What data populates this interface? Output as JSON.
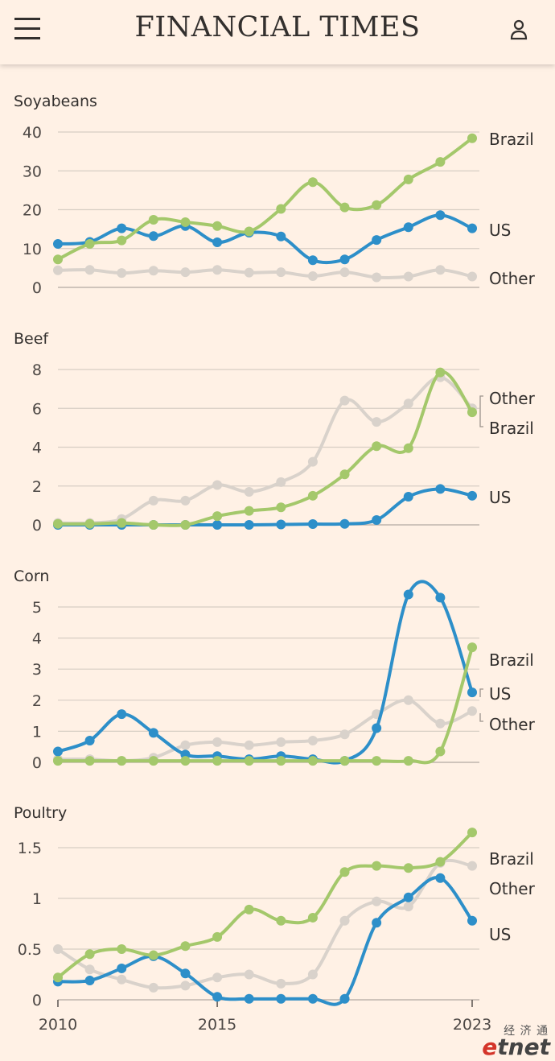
{
  "header": {
    "masthead": "FINANCIAL TIMES",
    "menu_icon": "hamburger-menu-icon",
    "account_icon": "user-account-icon"
  },
  "colors": {
    "background": "#fff1e5",
    "brazil": "#a4c86b",
    "us": "#2d8fc9",
    "other": "#d9d2cb",
    "grid": "#d7cec4",
    "text": "#33302e"
  },
  "chart_data": [
    {
      "type": "line",
      "title": "Soyabeans",
      "x": [
        2010,
        2011,
        2012,
        2013,
        2014,
        2015,
        2016,
        2017,
        2018,
        2019,
        2020,
        2021,
        2022,
        2023
      ],
      "ylim": [
        0,
        40
      ],
      "yticks": [
        0,
        10,
        20,
        30,
        40
      ],
      "series": [
        {
          "name": "Other",
          "values": [
            4.4,
            4.5,
            3.7,
            4.3,
            3.9,
            4.5,
            3.8,
            3.9,
            2.9,
            3.9,
            2.6,
            2.8,
            4.5,
            2.8
          ]
        },
        {
          "name": "US",
          "values": [
            11.2,
            11.7,
            15.2,
            13.2,
            15.8,
            11.6,
            14.1,
            13.1,
            7.0,
            7.2,
            12.2,
            15.5,
            18.6,
            15.2
          ]
        },
        {
          "name": "Brazil",
          "values": [
            7.2,
            11.2,
            12.1,
            17.4,
            16.8,
            15.8,
            14.4,
            20.2,
            27.1,
            20.6,
            21.2,
            27.8,
            32.3,
            38.4
          ]
        }
      ]
    },
    {
      "type": "line",
      "title": "Beef",
      "x": [
        2010,
        2011,
        2012,
        2013,
        2014,
        2015,
        2016,
        2017,
        2018,
        2019,
        2020,
        2021,
        2022,
        2023
      ],
      "ylim": [
        0,
        8
      ],
      "yticks": [
        0,
        2,
        4,
        6,
        8
      ],
      "series": [
        {
          "name": "Other",
          "values": [
            0.1,
            0.1,
            0.3,
            1.25,
            1.25,
            2.05,
            1.7,
            2.2,
            3.25,
            6.4,
            5.3,
            6.25,
            7.6,
            6.0
          ]
        },
        {
          "name": "US",
          "values": [
            0.0,
            0.0,
            0.0,
            0.0,
            0.0,
            0.0,
            0.0,
            0.02,
            0.04,
            0.05,
            0.25,
            1.45,
            1.85,
            1.5
          ]
        },
        {
          "name": "Brazil",
          "values": [
            0.05,
            0.05,
            0.1,
            0.0,
            0.0,
            0.45,
            0.72,
            0.9,
            1.5,
            2.6,
            4.05,
            3.95,
            7.85,
            5.8
          ]
        }
      ]
    },
    {
      "type": "line",
      "title": "Corn",
      "x": [
        2010,
        2011,
        2012,
        2013,
        2014,
        2015,
        2016,
        2017,
        2018,
        2019,
        2020,
        2021,
        2022,
        2023
      ],
      "ylim": [
        0,
        5.5
      ],
      "yticks": [
        0,
        1,
        2,
        3,
        4,
        5
      ],
      "series": [
        {
          "name": "Other",
          "values": [
            0.1,
            0.1,
            0.05,
            0.15,
            0.55,
            0.65,
            0.55,
            0.65,
            0.7,
            0.9,
            1.55,
            2.0,
            1.25,
            1.65
          ]
        },
        {
          "name": "US",
          "values": [
            0.35,
            0.7,
            1.55,
            0.95,
            0.25,
            0.2,
            0.1,
            0.2,
            0.1,
            0.05,
            1.1,
            5.4,
            5.3,
            2.25
          ]
        },
        {
          "name": "Brazil",
          "values": [
            0.05,
            0.05,
            0.05,
            0.05,
            0.05,
            0.05,
            0.05,
            0.05,
            0.05,
            0.05,
            0.05,
            0.05,
            0.35,
            3.7
          ]
        }
      ]
    },
    {
      "type": "line",
      "title": "Poultry",
      "x": [
        2010,
        2011,
        2012,
        2013,
        2014,
        2015,
        2016,
        2017,
        2018,
        2019,
        2020,
        2021,
        2022,
        2023
      ],
      "xticks": [
        "2010",
        "2015",
        "2023"
      ],
      "ylim": [
        0,
        1.75
      ],
      "yticks": [
        "0",
        "0.5",
        "1",
        "1.5"
      ],
      "series": [
        {
          "name": "Other",
          "values": [
            0.5,
            0.3,
            0.2,
            0.12,
            0.14,
            0.22,
            0.25,
            0.16,
            0.25,
            0.78,
            0.97,
            0.92,
            1.35,
            1.32
          ]
        },
        {
          "name": "US",
          "values": [
            0.18,
            0.19,
            0.31,
            0.43,
            0.26,
            0.03,
            0.01,
            0.01,
            0.01,
            0.01,
            0.76,
            1.01,
            1.2,
            0.78
          ]
        },
        {
          "name": "Brazil",
          "values": [
            0.22,
            0.45,
            0.5,
            0.44,
            0.53,
            0.62,
            0.89,
            0.78,
            0.81,
            1.26,
            1.32,
            1.3,
            1.36,
            1.65
          ]
        }
      ]
    }
  ]
}
